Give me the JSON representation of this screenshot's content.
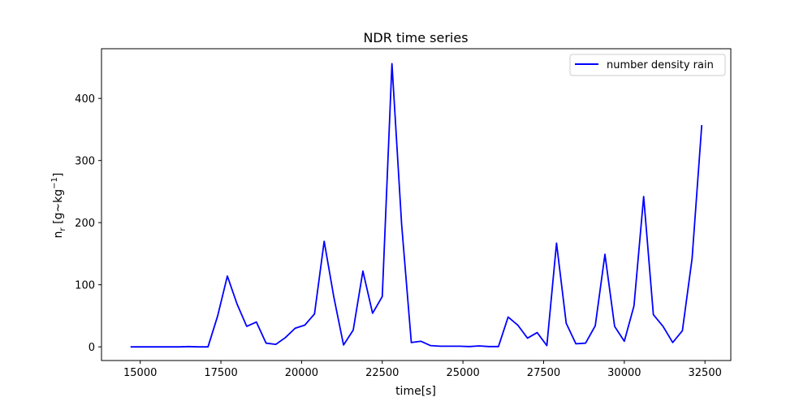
{
  "chart_data": {
    "type": "line",
    "title": "NDR time series",
    "xlabel": "time[s]",
    "ylabel_main": "n",
    "ylabel_sub": "r",
    "ylabel_rest": " [g~kg",
    "ylabel_exp": "−1",
    "ylabel_end": "]",
    "xlim": [
      13800,
      33300
    ],
    "ylim": [
      -22,
      480
    ],
    "xticks": [
      15000,
      17500,
      20000,
      22500,
      25000,
      27500,
      30000,
      32500
    ],
    "yticks": [
      0,
      100,
      200,
      300,
      400
    ],
    "grid": false,
    "legend_position": "top-right",
    "series": [
      {
        "name": "number density rain",
        "color": "#0000ff",
        "x": [
          14700,
          15000,
          15300,
          15600,
          15900,
          16200,
          16500,
          16800,
          17100,
          17400,
          17700,
          18000,
          18300,
          18600,
          18900,
          19200,
          19500,
          19800,
          20100,
          20400,
          20700,
          21000,
          21300,
          21600,
          21900,
          22200,
          22500,
          22800,
          23100,
          23400,
          23700,
          24000,
          24300,
          24600,
          24900,
          25200,
          25500,
          25800,
          26100,
          26400,
          26700,
          27000,
          27300,
          27600,
          27900,
          28200,
          28500,
          28800,
          29100,
          29400,
          29700,
          30000,
          30300,
          30600,
          30900,
          31200,
          31500,
          31800,
          32100,
          32400
        ],
        "y": [
          0,
          0,
          0,
          0,
          0,
          0,
          0.5,
          0,
          0,
          50,
          114,
          69,
          33,
          40,
          6,
          4,
          15,
          30,
          35,
          53,
          170,
          80,
          3,
          27,
          122,
          54,
          81,
          456,
          197,
          7,
          9,
          2,
          1,
          1,
          1,
          0.5,
          1.5,
          0.5,
          0.5,
          48,
          35,
          14,
          23,
          2,
          167,
          38,
          5,
          6,
          34,
          149,
          33,
          9,
          66,
          242,
          52,
          33,
          7,
          26,
          142,
          357
        ]
      }
    ]
  }
}
